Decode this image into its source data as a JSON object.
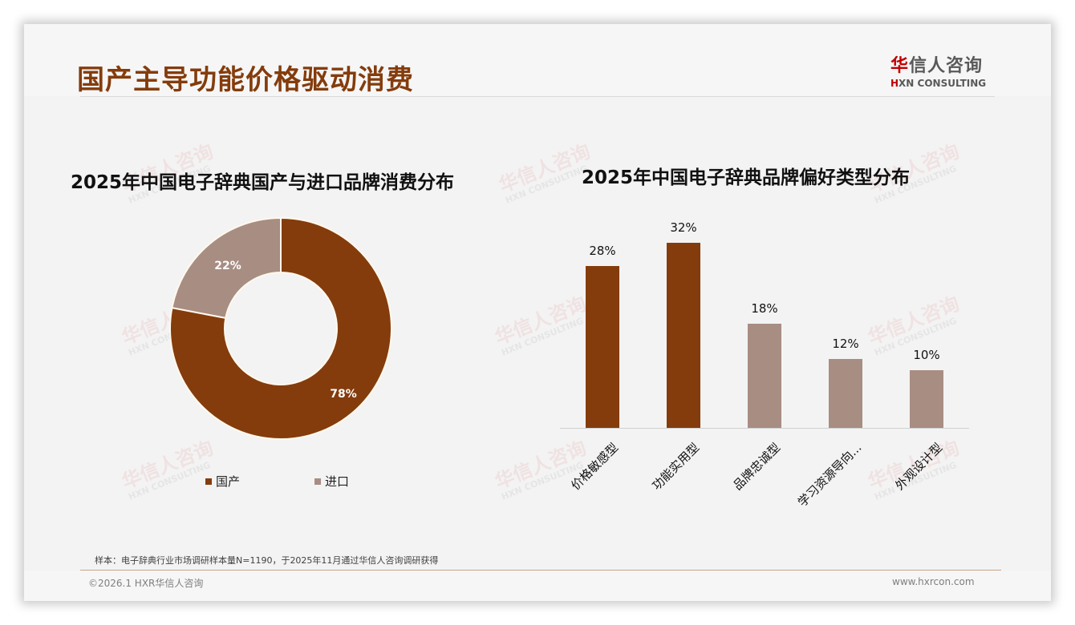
{
  "header": {
    "title": "国产主导功能价格驱动消费",
    "logo_cn_red": "华",
    "logo_cn_rest": "信人咨询",
    "logo_en_red": "H",
    "logo_en_rest": "XN CONSULTING"
  },
  "watermark": {
    "cn": "华信人咨询",
    "en": "HXN CONSULTING"
  },
  "colors": {
    "primary": "#843c0c",
    "secondary": "#a88d83",
    "title": "#843c0c",
    "logo_red": "#c00000"
  },
  "left_chart": {
    "title": "2025年中国电子辞典国产与进口品牌消费分布",
    "legend": [
      {
        "label": "国产",
        "color": "#843c0c"
      },
      {
        "label": "进口",
        "color": "#a88d83"
      }
    ],
    "labels": [
      "78%",
      "22%"
    ]
  },
  "right_chart": {
    "title": "2025年中国电子辞典品牌偏好类型分布",
    "bars": [
      {
        "label": "价格敏感型",
        "value_label": "28%",
        "color": "#843c0c"
      },
      {
        "label": "功能实用型",
        "value_label": "32%",
        "color": "#843c0c"
      },
      {
        "label": "品牌忠诚型",
        "value_label": "18%",
        "color": "#a88d83"
      },
      {
        "label": "学习资源导向...",
        "value_label": "12%",
        "color": "#a88d83"
      },
      {
        "label": "外观设计型",
        "value_label": "10%",
        "color": "#a88d83"
      }
    ]
  },
  "chart_data": [
    {
      "type": "pie",
      "subtype": "donut",
      "title": "2025年中国电子辞典国产与进口品牌消费分布",
      "categories": [
        "国产",
        "进口"
      ],
      "values": [
        78,
        22
      ],
      "unit": "%",
      "colors": [
        "#843c0c",
        "#a88d83"
      ],
      "legend_position": "bottom"
    },
    {
      "type": "bar",
      "title": "2025年中国电子辞典品牌偏好类型分布",
      "categories": [
        "价格敏感型",
        "功能实用型",
        "品牌忠诚型",
        "学习资源导向...",
        "外观设计型"
      ],
      "values": [
        28,
        32,
        18,
        12,
        10
      ],
      "unit": "%",
      "xlabel": "",
      "ylabel": "",
      "ylim": [
        0,
        35
      ],
      "grid": false,
      "data_labels": true,
      "x_tick_rotation": -45
    }
  ],
  "footer": {
    "source_note": "样本：电子辞典行业市场调研样本量N=1190，于2025年11月通过华信人咨询调研获得",
    "copyright": "©2026.1 HXR华信人咨询",
    "website": "www.hxrcon.com"
  }
}
